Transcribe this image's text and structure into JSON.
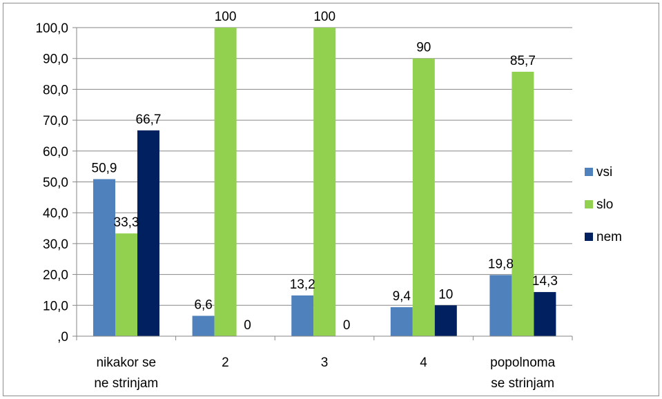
{
  "chart_data": {
    "type": "bar",
    "categories": [
      [
        "nikakor se",
        "ne strinjam"
      ],
      [
        "2"
      ],
      [
        "3"
      ],
      [
        "4"
      ],
      [
        "popolnoma",
        "se strinjam"
      ]
    ],
    "series": [
      {
        "name": "vsi",
        "color": "#4f81bd",
        "values": [
          50.9,
          6.6,
          13.2,
          9.4,
          19.8
        ],
        "labels": [
          "50,9",
          "6,6",
          "13,2",
          "9,4",
          "19,8"
        ]
      },
      {
        "name": "slo",
        "color": "#92d050",
        "values": [
          33.3,
          100,
          100,
          90,
          85.7
        ],
        "labels": [
          "33,3",
          "100",
          "100",
          "90",
          "85,7"
        ]
      },
      {
        "name": "nem",
        "color": "#002060",
        "values": [
          66.7,
          0,
          0,
          10,
          14.3
        ],
        "labels": [
          "66,7",
          "0",
          "0",
          "10",
          "14,3"
        ]
      }
    ],
    "ylim": [
      0,
      100
    ],
    "yticks": [
      ",0",
      "10,0",
      "20,0",
      "30,0",
      "40,0",
      "50,0",
      "60,0",
      "70,0",
      "80,0",
      "90,0",
      "100,0"
    ],
    "grid": true,
    "legend": "right"
  }
}
